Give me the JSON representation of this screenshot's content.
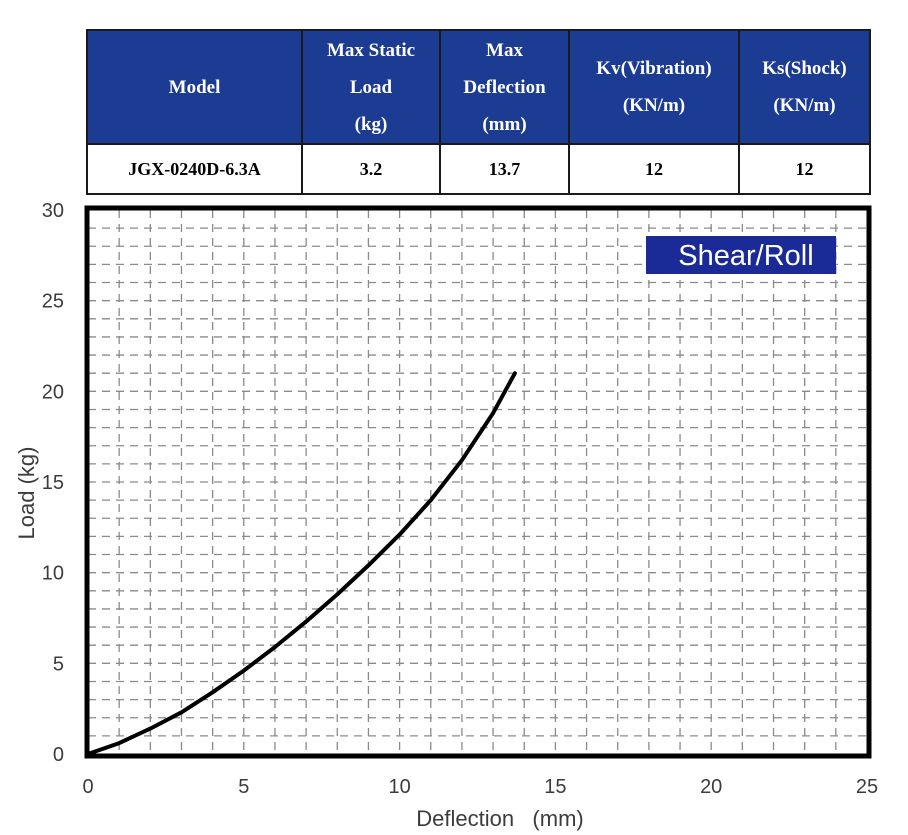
{
  "table": {
    "headers": [
      [
        "Model"
      ],
      [
        "Max Static",
        "Load",
        "(kg)"
      ],
      [
        "Max",
        "Deflection",
        "(mm)"
      ],
      [
        "Kv(Vibration)",
        "(KN/m)"
      ],
      [
        "Ks(Shock)",
        "(KN/m)"
      ]
    ],
    "rows": [
      [
        "JGX-0240D-6.3A",
        "3.2",
        "13.7",
        "12",
        "12"
      ]
    ]
  },
  "colors": {
    "header_bg": "#1c3b92",
    "badge_bg": "#1a2a96",
    "curve": "#000000",
    "grid": "#8a8a8a"
  },
  "chart_data": {
    "type": "line",
    "badge": "Shear/Roll",
    "xlabel": "Deflection   (mm)",
    "ylabel": "Load (kg)",
    "xlim": [
      0,
      25
    ],
    "ylim": [
      0,
      30
    ],
    "xticks": [
      "0",
      "5",
      "10",
      "15",
      "20",
      "25"
    ],
    "yticks": [
      "0",
      "5",
      "10",
      "15",
      "20",
      "25",
      "30"
    ],
    "grid": true,
    "series": [
      {
        "x": [
          0,
          1,
          2,
          3,
          4,
          5,
          6,
          7,
          8,
          9,
          10,
          11,
          12,
          13,
          13.7
        ],
        "y": [
          0,
          0.6,
          1.4,
          2.3,
          3.4,
          4.6,
          5.9,
          7.3,
          8.8,
          10.4,
          12.1,
          14.0,
          16.2,
          18.8,
          21.0
        ]
      }
    ]
  }
}
